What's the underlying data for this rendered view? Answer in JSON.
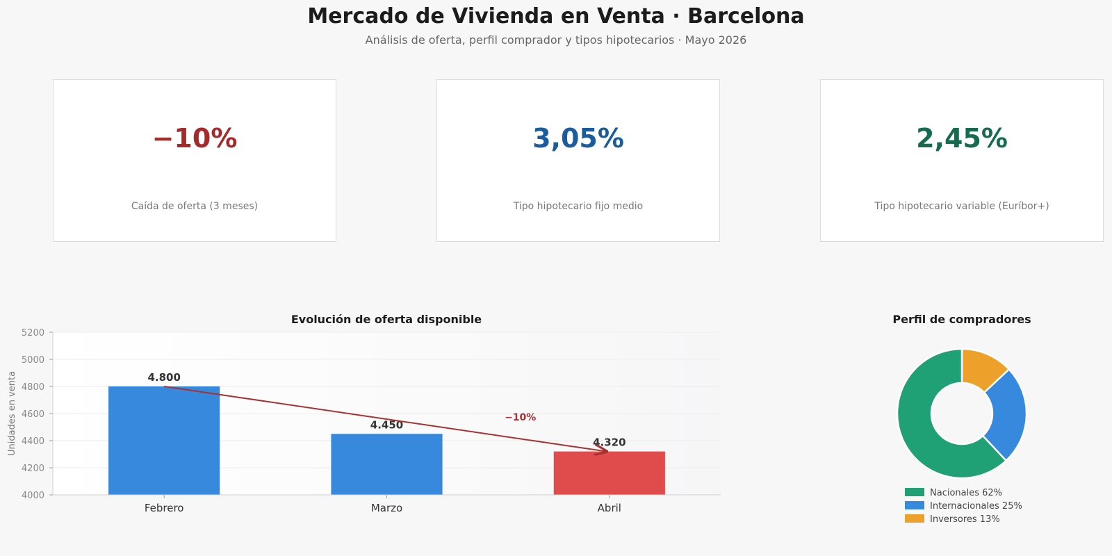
{
  "header": {
    "title": "Mercado de Vivienda en Venta · Barcelona",
    "subtitle": "Análisis de oferta, perfil comprador y tipos hipotecarios · Mayo 2026"
  },
  "kpis": [
    {
      "value": "−10%",
      "label": "Caída de oferta (3 meses)",
      "color": "#a52a2a"
    },
    {
      "value": "3,05%",
      "label": "Tipo hipotecario fijo medio",
      "color": "#1a5c9e"
    },
    {
      "value": "2,45%",
      "label": "Tipo hipotecario variable (Euríbor+)",
      "color": "#156b4f"
    }
  ],
  "chart_data": [
    {
      "type": "bar",
      "title": "Evolución de oferta disponible",
      "xlabel": "",
      "ylabel": "Unidades en venta",
      "categories": [
        "Febrero",
        "Marzo",
        "Abril"
      ],
      "values": [
        4800,
        4450,
        4320
      ],
      "value_labels": [
        "4.800",
        "4.450",
        "4.320"
      ],
      "bar_colors": [
        "#3689dd",
        "#3689dd",
        "#e04b4b"
      ],
      "ylim": [
        4000,
        5200
      ],
      "yticks": [
        4000,
        4200,
        4400,
        4600,
        4800,
        5000,
        5200
      ],
      "grid": true,
      "annotation": {
        "text": "−10%",
        "from": "Febrero",
        "to": "Abril",
        "color": "#a83232"
      }
    },
    {
      "type": "pie",
      "title": "Perfil de compradores",
      "donut": true,
      "labels": [
        "Nacionales",
        "Internacionales",
        "Inversores"
      ],
      "values": [
        62,
        25,
        13
      ],
      "legend_labels": [
        "Nacionales 62%",
        "Internacionales 25%",
        "Inversores 13%"
      ],
      "colors": [
        "#1fa075",
        "#3689dd",
        "#eea12a"
      ],
      "legend_position": "bottom"
    }
  ]
}
